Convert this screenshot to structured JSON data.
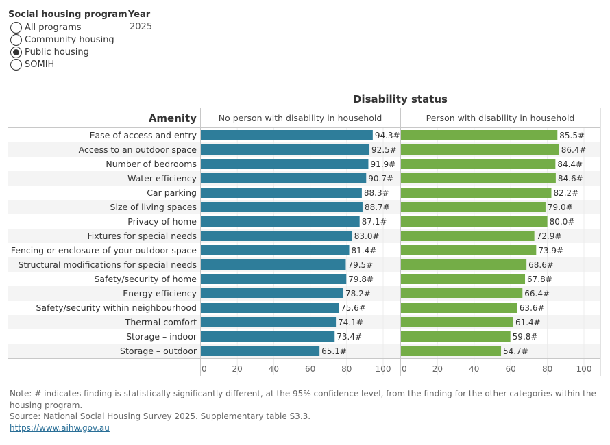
{
  "filters": {
    "program": {
      "title": "Social housing program",
      "options": [
        {
          "label": "All programs",
          "selected": false
        },
        {
          "label": "Community housing",
          "selected": false
        },
        {
          "label": "Public housing",
          "selected": true
        },
        {
          "label": "SOMIH",
          "selected": false
        }
      ]
    },
    "year": {
      "title": "Year",
      "value": "2025"
    }
  },
  "chart_data": {
    "type": "bar",
    "orientation": "horizontal",
    "column_header": "Disability status",
    "row_header": "Amenity",
    "categories": [
      "Ease of access and entry",
      "Access to an outdoor space",
      "Number of bedrooms",
      "Water efficiency",
      "Car parking",
      "Size of living spaces",
      "Privacy of home",
      "Fixtures for special needs",
      "Fencing or enclosure of your outdoor space",
      "Structural modifications for special needs",
      "Safety/security of home",
      "Energy efficiency",
      "Safety/security within neighbourhood",
      "Thermal comfort",
      "Storage – indoor",
      "Storage – outdoor"
    ],
    "series": [
      {
        "name": "No person with disability in household",
        "color": "#2e7d9a",
        "values": [
          94.3,
          92.5,
          91.9,
          90.7,
          88.3,
          88.7,
          87.1,
          83.0,
          81.4,
          79.5,
          79.8,
          78.2,
          75.6,
          74.1,
          73.4,
          65.1
        ],
        "labels": [
          "94.3#",
          "92.5#",
          "91.9#",
          "90.7#",
          "88.3#",
          "88.7#",
          "87.1#",
          "83.0#",
          "81.4#",
          "79.5#",
          "79.8#",
          "78.2#",
          "75.6#",
          "74.1#",
          "73.4#",
          "65.1#"
        ]
      },
      {
        "name": "Person with disability in household",
        "color": "#74ad47",
        "values": [
          85.5,
          86.4,
          84.4,
          84.6,
          82.2,
          79.0,
          80.0,
          72.9,
          73.9,
          68.6,
          67.8,
          66.4,
          63.6,
          61.4,
          59.8,
          54.7
        ],
        "labels": [
          "85.5#",
          "86.4#",
          "84.4#",
          "84.6#",
          "82.2#",
          "79.0#",
          "80.0#",
          "72.9#",
          "73.9#",
          "68.6#",
          "67.8#",
          "66.4#",
          "63.6#",
          "61.4#",
          "59.8#",
          "54.7#"
        ]
      }
    ],
    "xlim": [
      0,
      100
    ],
    "xticks": [
      0,
      20,
      40,
      60,
      80,
      100
    ],
    "grid": true,
    "row_banding": true
  },
  "footer": {
    "note": "Note: # indicates finding is statistically significantly different, at the 95% confidence level, from the finding for the other categories within the housing program.",
    "source": "Source: National Social Housing Survey 2025. Supplementary table S3.3.",
    "link": "https://www.aihw.gov.au"
  }
}
